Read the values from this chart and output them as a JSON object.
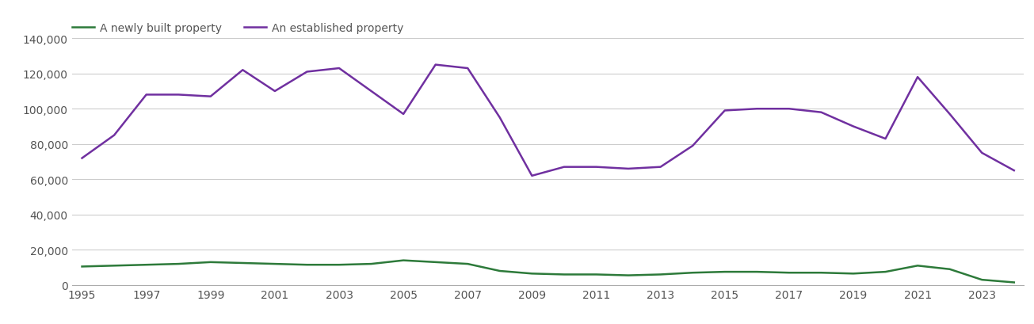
{
  "years": [
    1995,
    1996,
    1997,
    1998,
    1999,
    2000,
    2001,
    2002,
    2003,
    2004,
    2005,
    2006,
    2007,
    2008,
    2009,
    2010,
    2011,
    2012,
    2013,
    2014,
    2015,
    2016,
    2017,
    2018,
    2019,
    2020,
    2021,
    2022,
    2023,
    2024
  ],
  "new_homes": [
    10500,
    11000,
    11500,
    12000,
    13000,
    12500,
    12000,
    11500,
    11500,
    12000,
    14000,
    13000,
    12000,
    8000,
    6500,
    6000,
    6000,
    5500,
    6000,
    7000,
    7500,
    7500,
    7000,
    7000,
    6500,
    7500,
    11000,
    9000,
    3000,
    1500
  ],
  "established_homes": [
    72000,
    85000,
    108000,
    108000,
    107000,
    122000,
    110000,
    121000,
    123000,
    110000,
    97000,
    125000,
    123000,
    95000,
    62000,
    67000,
    67000,
    66000,
    67000,
    79000,
    99000,
    100000,
    100000,
    98000,
    90000,
    83000,
    118000,
    97000,
    75000,
    65000
  ],
  "new_color": "#2d7a3a",
  "established_color": "#7030a0",
  "background_color": "#ffffff",
  "grid_color": "#cccccc",
  "legend_new": "A newly built property",
  "legend_established": "An established property",
  "ylim": [
    0,
    140000
  ],
  "yticks": [
    0,
    20000,
    40000,
    60000,
    80000,
    100000,
    120000,
    140000
  ],
  "line_width": 1.8,
  "tick_label_color": "#555555",
  "legend_fontsize": 10,
  "axis_fontsize": 10
}
